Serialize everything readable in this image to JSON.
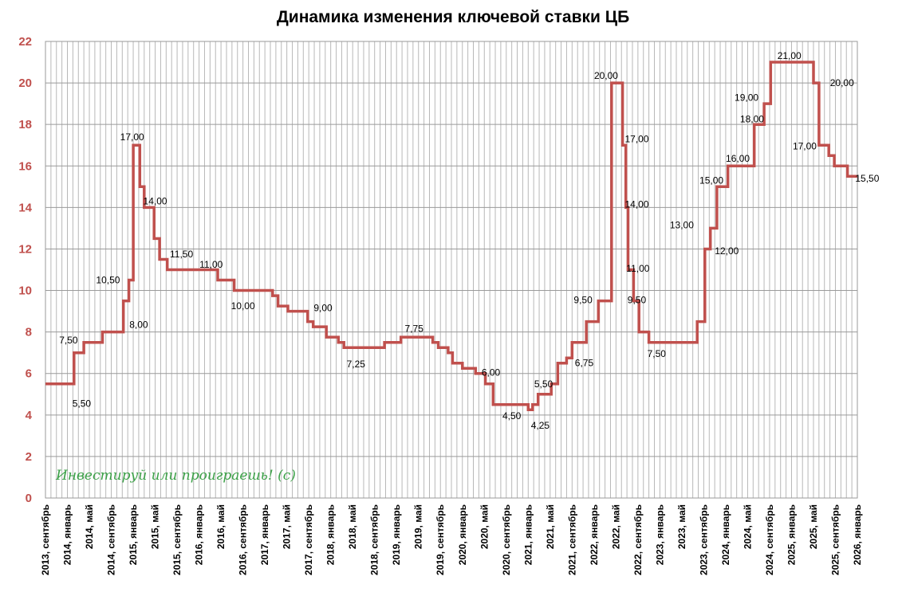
{
  "chart_data": {
    "type": "line",
    "title": "Динамика изменения ключевой ставки ЦБ",
    "xlabel": "",
    "ylabel": "",
    "ylim": [
      0,
      22
    ],
    "y_ticks": [
      "0",
      "2",
      "4",
      "6",
      "8",
      "10",
      "12",
      "14",
      "16",
      "18",
      "20",
      "22"
    ],
    "grid": true,
    "line_color": "#c0504d",
    "x_tick_labels": [
      "2013, сентябрь",
      "2014, январь",
      "2014, май",
      "2014, сентябрь",
      "2015, январь",
      "2015, май",
      "2015, сентябрь",
      "2016, январь",
      "2016, май",
      "2016, сентябрь",
      "2017, январь",
      "2017, май",
      "2017, сентябрь",
      "2018, январь",
      "2018, май",
      "2018, сентябрь",
      "2019, январь",
      "2019, май",
      "2019, сентябрь",
      "2020, январь",
      "2020, май",
      "2020, сентябрь",
      "2021, январь",
      "2021, май",
      "2021, сентябрь",
      "2022, январь",
      "2022, май",
      "2022, сентябрь",
      "2023, январь",
      "2023, май",
      "2023, сентябрь",
      "2024, январь",
      "2024, май",
      "2024, сентябрь",
      "2025, январь",
      "2025, май",
      "2025, сентябрь",
      "2026, январь"
    ],
    "series": [
      {
        "values": [
          5.5,
          7.0,
          7.5,
          8.0,
          9.5,
          10.5,
          17.0,
          15.0,
          14.0,
          12.5,
          11.5,
          11.0,
          10.5,
          10.0,
          9.75,
          9.25,
          9.0,
          8.5,
          8.25,
          7.75,
          7.5,
          7.25,
          7.5,
          7.75,
          7.5,
          7.25,
          7.0,
          6.5,
          6.25,
          6.0,
          5.5,
          4.5,
          4.25,
          4.5,
          5.0,
          5.5,
          6.5,
          6.75,
          7.5,
          8.5,
          9.5,
          20.0,
          17.0,
          14.0,
          11.0,
          9.5,
          8.0,
          7.5,
          8.5,
          12.0,
          13.0,
          15.0,
          16.0,
          18.0,
          19.0,
          21.0,
          20.0,
          17.0,
          16.5,
          16.0,
          15.5
        ],
        "x_index": [
          0,
          1.3,
          1.75,
          2.6,
          3.55,
          3.8,
          4.0,
          4.3,
          4.5,
          4.95,
          5.2,
          5.55,
          7.85,
          8.6,
          10.35,
          10.6,
          11.05,
          11.95,
          12.2,
          12.8,
          13.35,
          13.6,
          15.45,
          16.2,
          17.65,
          17.9,
          18.35,
          18.55,
          19.0,
          19.6,
          20.05,
          20.4,
          22.0,
          22.2,
          22.45,
          23.05,
          23.35,
          23.75,
          24.0,
          24.65,
          25.2,
          25.8,
          26.3,
          26.45,
          26.55,
          26.8,
          27.05,
          27.5,
          29.7,
          30.05,
          30.3,
          30.6,
          31.1,
          32.3,
          32.75,
          33.05,
          35.0,
          35.25,
          35.7,
          35.95,
          36.55
        ],
        "x_end_index": 37.0
      }
    ],
    "data_labels": [
      {
        "text": "5,50",
        "x_index": 1.65,
        "y": 4.55
      },
      {
        "text": "7,50",
        "x_index": 1.05,
        "y": 7.6
      },
      {
        "text": "8,00",
        "x_index": 4.25,
        "y": 8.35
      },
      {
        "text": "10,50",
        "x_index": 2.85,
        "y": 10.5
      },
      {
        "text": "17,00",
        "x_index": 3.95,
        "y": 17.4
      },
      {
        "text": "14,00",
        "x_index": 5.0,
        "y": 14.3
      },
      {
        "text": "11,50",
        "x_index": 6.2,
        "y": 11.75
      },
      {
        "text": "11,00",
        "x_index": 7.55,
        "y": 11.25
      },
      {
        "text": "10,00",
        "x_index": 9.0,
        "y": 9.25
      },
      {
        "text": "9,00",
        "x_index": 12.65,
        "y": 9.15
      },
      {
        "text": "7,25",
        "x_index": 14.15,
        "y": 6.45
      },
      {
        "text": "7,75",
        "x_index": 16.8,
        "y": 8.15
      },
      {
        "text": "6,00",
        "x_index": 20.3,
        "y": 6.05
      },
      {
        "text": "4,50",
        "x_index": 21.25,
        "y": 3.95
      },
      {
        "text": "4,25",
        "x_index": 22.55,
        "y": 3.5
      },
      {
        "text": "5,50",
        "x_index": 22.7,
        "y": 5.5
      },
      {
        "text": "6,75",
        "x_index": 24.55,
        "y": 6.5
      },
      {
        "text": "9,50",
        "x_index": 24.5,
        "y": 9.55
      },
      {
        "text": "20,00",
        "x_index": 25.55,
        "y": 20.35
      },
      {
        "text": "17,00",
        "x_index": 26.95,
        "y": 17.3
      },
      {
        "text": "14,00",
        "x_index": 26.95,
        "y": 14.15
      },
      {
        "text": "11,00",
        "x_index": 27.0,
        "y": 11.05
      },
      {
        "text": "9,50",
        "x_index": 26.95,
        "y": 9.55
      },
      {
        "text": "7,50",
        "x_index": 27.85,
        "y": 6.95
      },
      {
        "text": "13,00",
        "x_index": 29.0,
        "y": 13.15
      },
      {
        "text": "12,00",
        "x_index": 31.05,
        "y": 11.9
      },
      {
        "text": "15,00",
        "x_index": 30.35,
        "y": 15.3
      },
      {
        "text": "16,00",
        "x_index": 31.55,
        "y": 16.35
      },
      {
        "text": "18,00",
        "x_index": 32.2,
        "y": 18.25
      },
      {
        "text": "19,00",
        "x_index": 31.95,
        "y": 19.3
      },
      {
        "text": "21,00",
        "x_index": 33.9,
        "y": 21.3
      },
      {
        "text": "20,00",
        "x_index": 36.3,
        "y": 20.0
      },
      {
        "text": "17,00",
        "x_index": 34.6,
        "y": 16.95
      },
      {
        "text": "15,50",
        "x_index": 37.45,
        "y": 15.4
      }
    ],
    "annotation": "Инвестируй или проиграешь! (с)"
  }
}
